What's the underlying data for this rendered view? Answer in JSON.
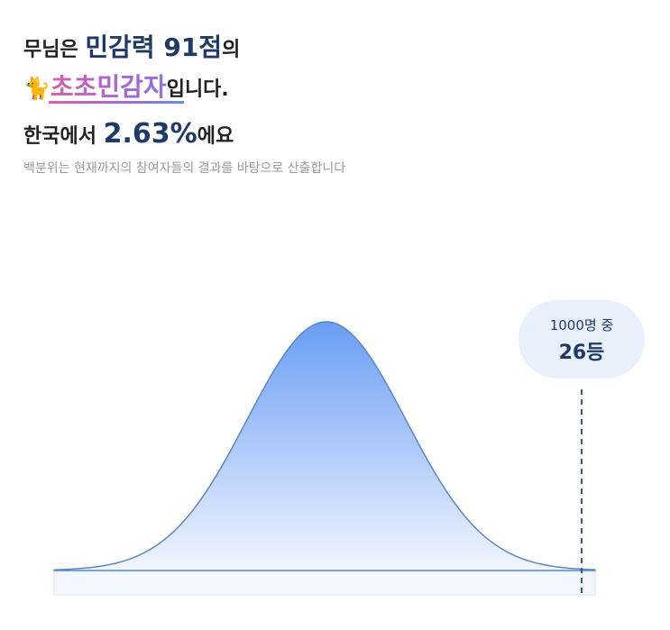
{
  "headline": {
    "line1": {
      "prefix": "무님은 ",
      "score": "민감력 91점",
      "suffix": "의"
    },
    "line2": {
      "emoji": "🐈",
      "type": "초초민감자",
      "suffix": "입니다."
    },
    "line3": {
      "prefix": "한국에서 ",
      "percent": "2.63%",
      "suffix": "에요"
    },
    "note": "백분위는 현재까지의 참여자들의 결과를 바탕으로 산출합니다"
  },
  "rank_bubble": {
    "total": "1000명 중",
    "rank": "26등"
  }
}
